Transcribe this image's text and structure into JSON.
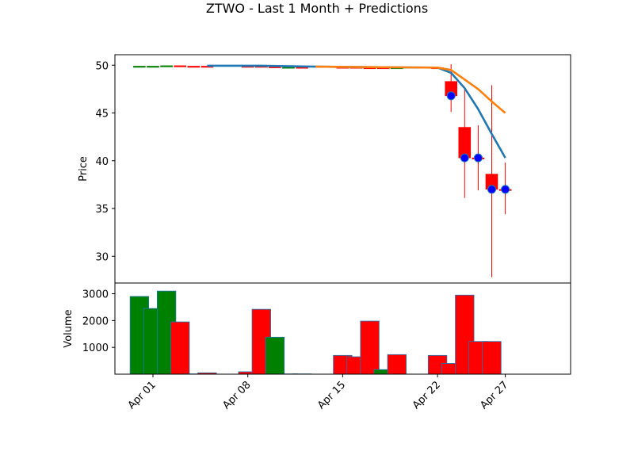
{
  "chart_data": {
    "type": "candlestick",
    "title": "ZTWO - Last 1 Month + Predictions",
    "price_panel": {
      "ylabel": "Price",
      "ylim": [
        27.2,
        51.1
      ],
      "yticks": [
        30,
        35,
        40,
        45,
        50
      ],
      "candles": [
        {
          "date": "2024-03-31",
          "open": 49.9,
          "high": 49.9,
          "low": 49.9,
          "close": 49.9,
          "color": "green"
        },
        {
          "date": "2024-04-01",
          "open": 49.9,
          "high": 49.9,
          "low": 49.9,
          "close": 49.9,
          "color": "green"
        },
        {
          "date": "2024-04-02",
          "open": 49.9,
          "high": 49.95,
          "low": 49.9,
          "close": 49.95,
          "color": "green"
        },
        {
          "date": "2024-04-03",
          "open": 49.95,
          "high": 49.95,
          "low": 49.9,
          "close": 49.9,
          "color": "red"
        },
        {
          "date": "2024-04-04",
          "open": 49.9,
          "high": 49.9,
          "low": 49.9,
          "close": 49.9,
          "color": "red"
        },
        {
          "date": "2024-04-05",
          "open": 49.9,
          "high": 49.9,
          "low": 49.9,
          "close": 49.9,
          "color": "red"
        },
        {
          "date": "2024-04-08",
          "open": 49.9,
          "high": 49.9,
          "low": 49.9,
          "close": 49.9,
          "color": "red"
        },
        {
          "date": "2024-04-09",
          "open": 49.9,
          "high": 49.9,
          "low": 49.85,
          "close": 49.85,
          "color": "red"
        },
        {
          "date": "2024-04-10",
          "open": 49.85,
          "high": 49.85,
          "low": 49.75,
          "close": 49.75,
          "color": "red"
        },
        {
          "date": "2024-04-11",
          "open": 49.75,
          "high": 49.8,
          "low": 49.75,
          "close": 49.8,
          "color": "green"
        },
        {
          "date": "2024-04-12",
          "open": 49.8,
          "high": 49.8,
          "low": 49.8,
          "close": 49.8,
          "color": "red"
        },
        {
          "date": "2024-04-15",
          "open": 49.8,
          "high": 49.8,
          "low": 49.8,
          "close": 49.8,
          "color": "red"
        },
        {
          "date": "2024-04-16",
          "open": 49.8,
          "high": 49.8,
          "low": 49.75,
          "close": 49.75,
          "color": "red"
        },
        {
          "date": "2024-04-17",
          "open": 49.75,
          "high": 49.75,
          "low": 49.75,
          "close": 49.75,
          "color": "red"
        },
        {
          "date": "2024-04-18",
          "open": 49.75,
          "high": 49.75,
          "low": 49.7,
          "close": 49.7,
          "color": "red"
        },
        {
          "date": "2024-04-19",
          "open": 49.7,
          "high": 49.75,
          "low": 49.7,
          "close": 49.75,
          "color": "green"
        },
        {
          "date": "2024-04-22",
          "open": 49.75,
          "high": 49.75,
          "low": 49.7,
          "close": 49.7,
          "color": "red"
        },
        {
          "date": "2024-04-23",
          "open": 48.3,
          "high": 50.1,
          "low": 45.1,
          "close": 46.8,
          "color": "red"
        },
        {
          "date": "2024-04-24",
          "open": 43.5,
          "high": 47.5,
          "low": 36.1,
          "close": 40.3,
          "color": "red"
        },
        {
          "date": "2024-04-25",
          "open": 40.3,
          "high": 43.7,
          "low": 36.9,
          "close": 40.3,
          "color": "red"
        },
        {
          "date": "2024-04-26",
          "open": 38.6,
          "high": 47.9,
          "low": 27.8,
          "close": 37.0,
          "color": "red"
        },
        {
          "date": "2024-04-27",
          "open": 37.0,
          "high": 39.8,
          "low": 34.4,
          "close": 37.0,
          "color": "red"
        }
      ],
      "prediction_points": [
        {
          "date": "2024-04-23",
          "value": 46.8
        },
        {
          "date": "2024-04-24",
          "value": 40.3
        },
        {
          "date": "2024-04-25",
          "value": 40.3
        },
        {
          "date": "2024-04-26",
          "value": 37.0
        },
        {
          "date": "2024-04-27",
          "value": 37.0
        }
      ],
      "lines": [
        {
          "color": "#1f77b4",
          "points": [
            {
              "date": "2024-04-05",
              "value": 49.95
            },
            {
              "date": "2024-04-09",
              "value": 49.95
            },
            {
              "date": "2024-04-13",
              "value": 49.85
            },
            {
              "date": "2024-04-17",
              "value": 49.8
            },
            {
              "date": "2024-04-22",
              "value": 49.75
            },
            {
              "date": "2024-04-23",
              "value": 49.2
            },
            {
              "date": "2024-04-24",
              "value": 47.6
            },
            {
              "date": "2024-04-25",
              "value": 45.4
            },
            {
              "date": "2024-04-26",
              "value": 42.8
            },
            {
              "date": "2024-04-27",
              "value": 40.3
            }
          ]
        },
        {
          "color": "#ff7f0e",
          "points": [
            {
              "date": "2024-04-13",
              "value": 49.85
            },
            {
              "date": "2024-04-17",
              "value": 49.8
            },
            {
              "date": "2024-04-22",
              "value": 49.75
            },
            {
              "date": "2024-04-23",
              "value": 49.5
            },
            {
              "date": "2024-04-24",
              "value": 48.5
            },
            {
              "date": "2024-04-25",
              "value": 47.5
            },
            {
              "date": "2024-04-26",
              "value": 46.2
            },
            {
              "date": "2024-04-27",
              "value": 45.0
            }
          ]
        }
      ]
    },
    "volume_panel": {
      "ylabel": "Volume",
      "ylim": [
        0,
        3400
      ],
      "yticks": [
        1000,
        2000,
        3000
      ],
      "bars": [
        {
          "date": "2024-03-31",
          "value": 2900,
          "color": "green"
        },
        {
          "date": "2024-04-01",
          "value": 2450,
          "color": "green"
        },
        {
          "date": "2024-04-02",
          "value": 3100,
          "color": "green"
        },
        {
          "date": "2024-04-03",
          "value": 1950,
          "color": "red"
        },
        {
          "date": "2024-04-04",
          "value": 10,
          "color": "red"
        },
        {
          "date": "2024-04-05",
          "value": 50,
          "color": "red"
        },
        {
          "date": "2024-04-08",
          "value": 90,
          "color": "red"
        },
        {
          "date": "2024-04-09",
          "value": 2420,
          "color": "red"
        },
        {
          "date": "2024-04-10",
          "value": 1380,
          "color": "green"
        },
        {
          "date": "2024-04-11",
          "value": 10,
          "color": "red"
        },
        {
          "date": "2024-04-12",
          "value": 10,
          "color": "red"
        },
        {
          "date": "2024-04-15",
          "value": 700,
          "color": "red"
        },
        {
          "date": "2024-04-16",
          "value": 650,
          "color": "red"
        },
        {
          "date": "2024-04-17",
          "value": 1980,
          "color": "red"
        },
        {
          "date": "2024-04-18",
          "value": 170,
          "color": "green"
        },
        {
          "date": "2024-04-19",
          "value": 730,
          "color": "red"
        },
        {
          "date": "2024-04-22",
          "value": 700,
          "color": "red"
        },
        {
          "date": "2024-04-23",
          "value": 400,
          "color": "red"
        },
        {
          "date": "2024-04-24",
          "value": 2950,
          "color": "red"
        },
        {
          "date": "2024-04-25",
          "value": 1220,
          "color": "red"
        },
        {
          "date": "2024-04-26",
          "value": 1220,
          "color": "red"
        }
      ]
    },
    "x_axis": {
      "tick_labels": [
        "Apr 01",
        "Apr 08",
        "Apr 15",
        "Apr 22",
        "Apr 27"
      ],
      "tick_dates": [
        "2024-04-01",
        "2024-04-08",
        "2024-04-15",
        "2024-04-22",
        "2024-04-27"
      ]
    },
    "colors": {
      "up": "#008000",
      "down": "#ff0000",
      "bar_edge": "#1f77b4",
      "marker_fill": "#0000ff",
      "marker_edge": "#1f77b4"
    }
  }
}
